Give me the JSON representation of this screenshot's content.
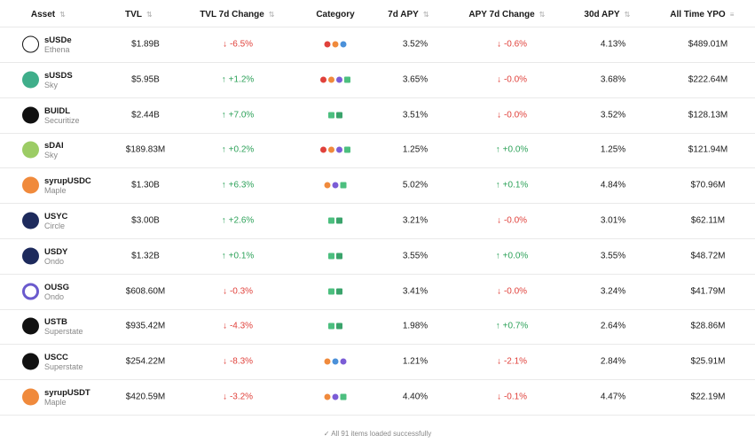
{
  "table": {
    "headers": [
      "Asset",
      "TVL",
      "TVL 7d Change",
      "Category",
      "7d APY",
      "APY 7d Change",
      "30d APY",
      "All Time YPO"
    ],
    "rows": [
      {
        "asset": "sUSDe",
        "issuer": "Ethena",
        "tvl": "$1.89B",
        "tvl_change": "-6.5%",
        "apy_7d": "3.52%",
        "apy_change": "-0.6%",
        "apy_30d": "4.13%",
        "ypo": "$489.01M"
      },
      {
        "asset": "sUSDS",
        "issuer": "Sky",
        "tvl": "$5.95B",
        "tvl_change": "+1.2%",
        "apy_7d": "3.65%",
        "apy_change": "-0.0%",
        "apy_30d": "3.68%",
        "ypo": "$222.64M"
      },
      {
        "asset": "BUIDL",
        "issuer": "Securitize",
        "tvl": "$2.44B",
        "tvl_change": "+7.0%",
        "apy_7d": "3.51%",
        "apy_change": "-0.0%",
        "apy_30d": "3.52%",
        "ypo": "$128.13M"
      },
      {
        "asset": "sDAI",
        "issuer": "Sky",
        "tvl": "$189.83M",
        "tvl_change": "+0.2%",
        "apy_7d": "1.25%",
        "apy_change": "+0.0%",
        "apy_30d": "1.25%",
        "ypo": "$121.94M"
      },
      {
        "asset": "syrupUSDC",
        "issuer": "Maple",
        "tvl": "$1.30B",
        "tvl_change": "+6.3%",
        "apy_7d": "5.02%",
        "apy_change": "+0.1%",
        "apy_30d": "4.84%",
        "ypo": "$70.96M"
      },
      {
        "asset": "USYC",
        "issuer": "Circle",
        "tvl": "$3.00B",
        "tvl_change": "+2.6%",
        "apy_7d": "3.21%",
        "apy_change": "-0.0%",
        "apy_30d": "3.01%",
        "ypo": "$62.11M"
      },
      {
        "asset": "USDY",
        "issuer": "Ondo",
        "tvl": "$1.32B",
        "tvl_change": "+0.1%",
        "apy_7d": "3.55%",
        "apy_change": "+0.0%",
        "apy_30d": "3.55%",
        "ypo": "$48.72M"
      },
      {
        "asset": "OUSG",
        "issuer": "Ondo",
        "tvl": "$608.60M",
        "tvl_change": "-0.3%",
        "apy_7d": "3.41%",
        "apy_change": "-0.0%",
        "apy_30d": "3.24%",
        "ypo": "$41.79M"
      },
      {
        "asset": "USTB",
        "issuer": "Superstate",
        "tvl": "$935.42M",
        "tvl_change": "-4.3%",
        "apy_7d": "1.98%",
        "apy_change": "+0.7%",
        "apy_30d": "2.64%",
        "ypo": "$28.86M"
      },
      {
        "asset": "USCC",
        "issuer": "Superstate",
        "tvl": "$254.22M",
        "tvl_change": "-8.3%",
        "apy_7d": "1.21%",
        "apy_change": "-2.1%",
        "apy_30d": "2.84%",
        "ypo": "$25.91M"
      },
      {
        "asset": "syrupUSDT",
        "issuer": "Maple",
        "tvl": "$420.59M",
        "tvl_change": "-3.2%",
        "apy_7d": "4.40%",
        "apy_change": "-0.1%",
        "apy_30d": "4.47%",
        "ypo": "$22.19M"
      }
    ]
  },
  "footer": "All 91 items loaded successfully"
}
